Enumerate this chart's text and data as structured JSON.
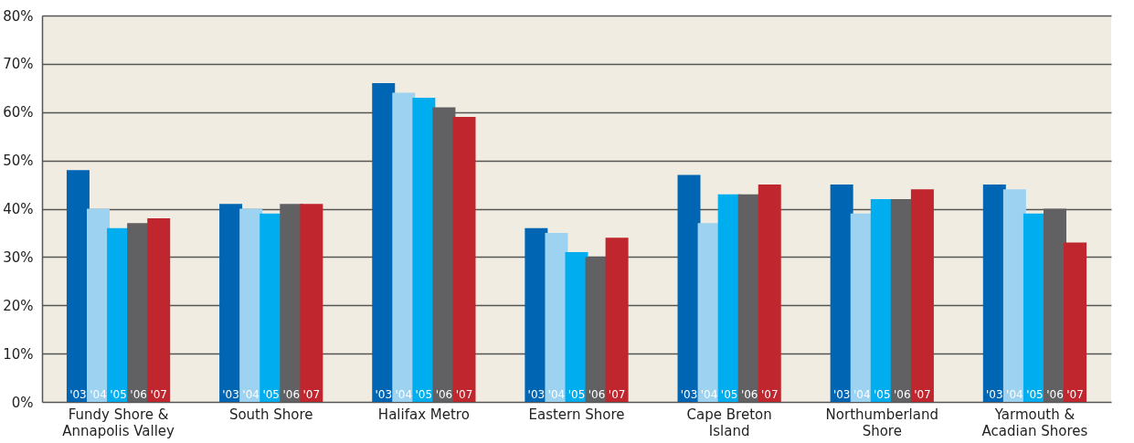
{
  "chart_data": {
    "type": "bar",
    "categories": [
      "Fundy Shore & Annapolis Valley",
      "South Shore",
      "Halifax Metro",
      "Eastern Shore",
      "Cape Breton Island",
      "Northumberland Shore",
      "Yarmouth & Acadian Shores"
    ],
    "series": [
      {
        "name": "'03",
        "color": "#0066b3",
        "values": [
          48,
          41,
          66,
          36,
          47,
          45,
          45
        ]
      },
      {
        "name": "'04",
        "color": "#9dd3f0",
        "values": [
          40,
          40,
          64,
          35,
          37,
          39,
          44
        ]
      },
      {
        "name": "'05",
        "color": "#00aeef",
        "values": [
          36,
          39,
          63,
          31,
          43,
          42,
          39
        ]
      },
      {
        "name": "'06",
        "color": "#616164",
        "values": [
          37,
          41,
          61,
          30,
          43,
          42,
          40
        ]
      },
      {
        "name": "'07",
        "color": "#c0262d",
        "values": [
          38,
          41,
          59,
          34,
          45,
          44,
          33
        ]
      }
    ],
    "ylim": [
      0,
      80
    ],
    "yticks": [
      {
        "value": 0,
        "label": "0%"
      },
      {
        "value": 10,
        "label": "10%"
      },
      {
        "value": 20,
        "label": "20%"
      },
      {
        "value": 30,
        "label": "30%"
      },
      {
        "value": 40,
        "label": "40%"
      },
      {
        "value": 50,
        "label": "50%"
      },
      {
        "value": 60,
        "label": "60%"
      },
      {
        "value": 70,
        "label": "70%"
      },
      {
        "value": 80,
        "label": "80%"
      }
    ],
    "grid": "y",
    "legend": false
  }
}
